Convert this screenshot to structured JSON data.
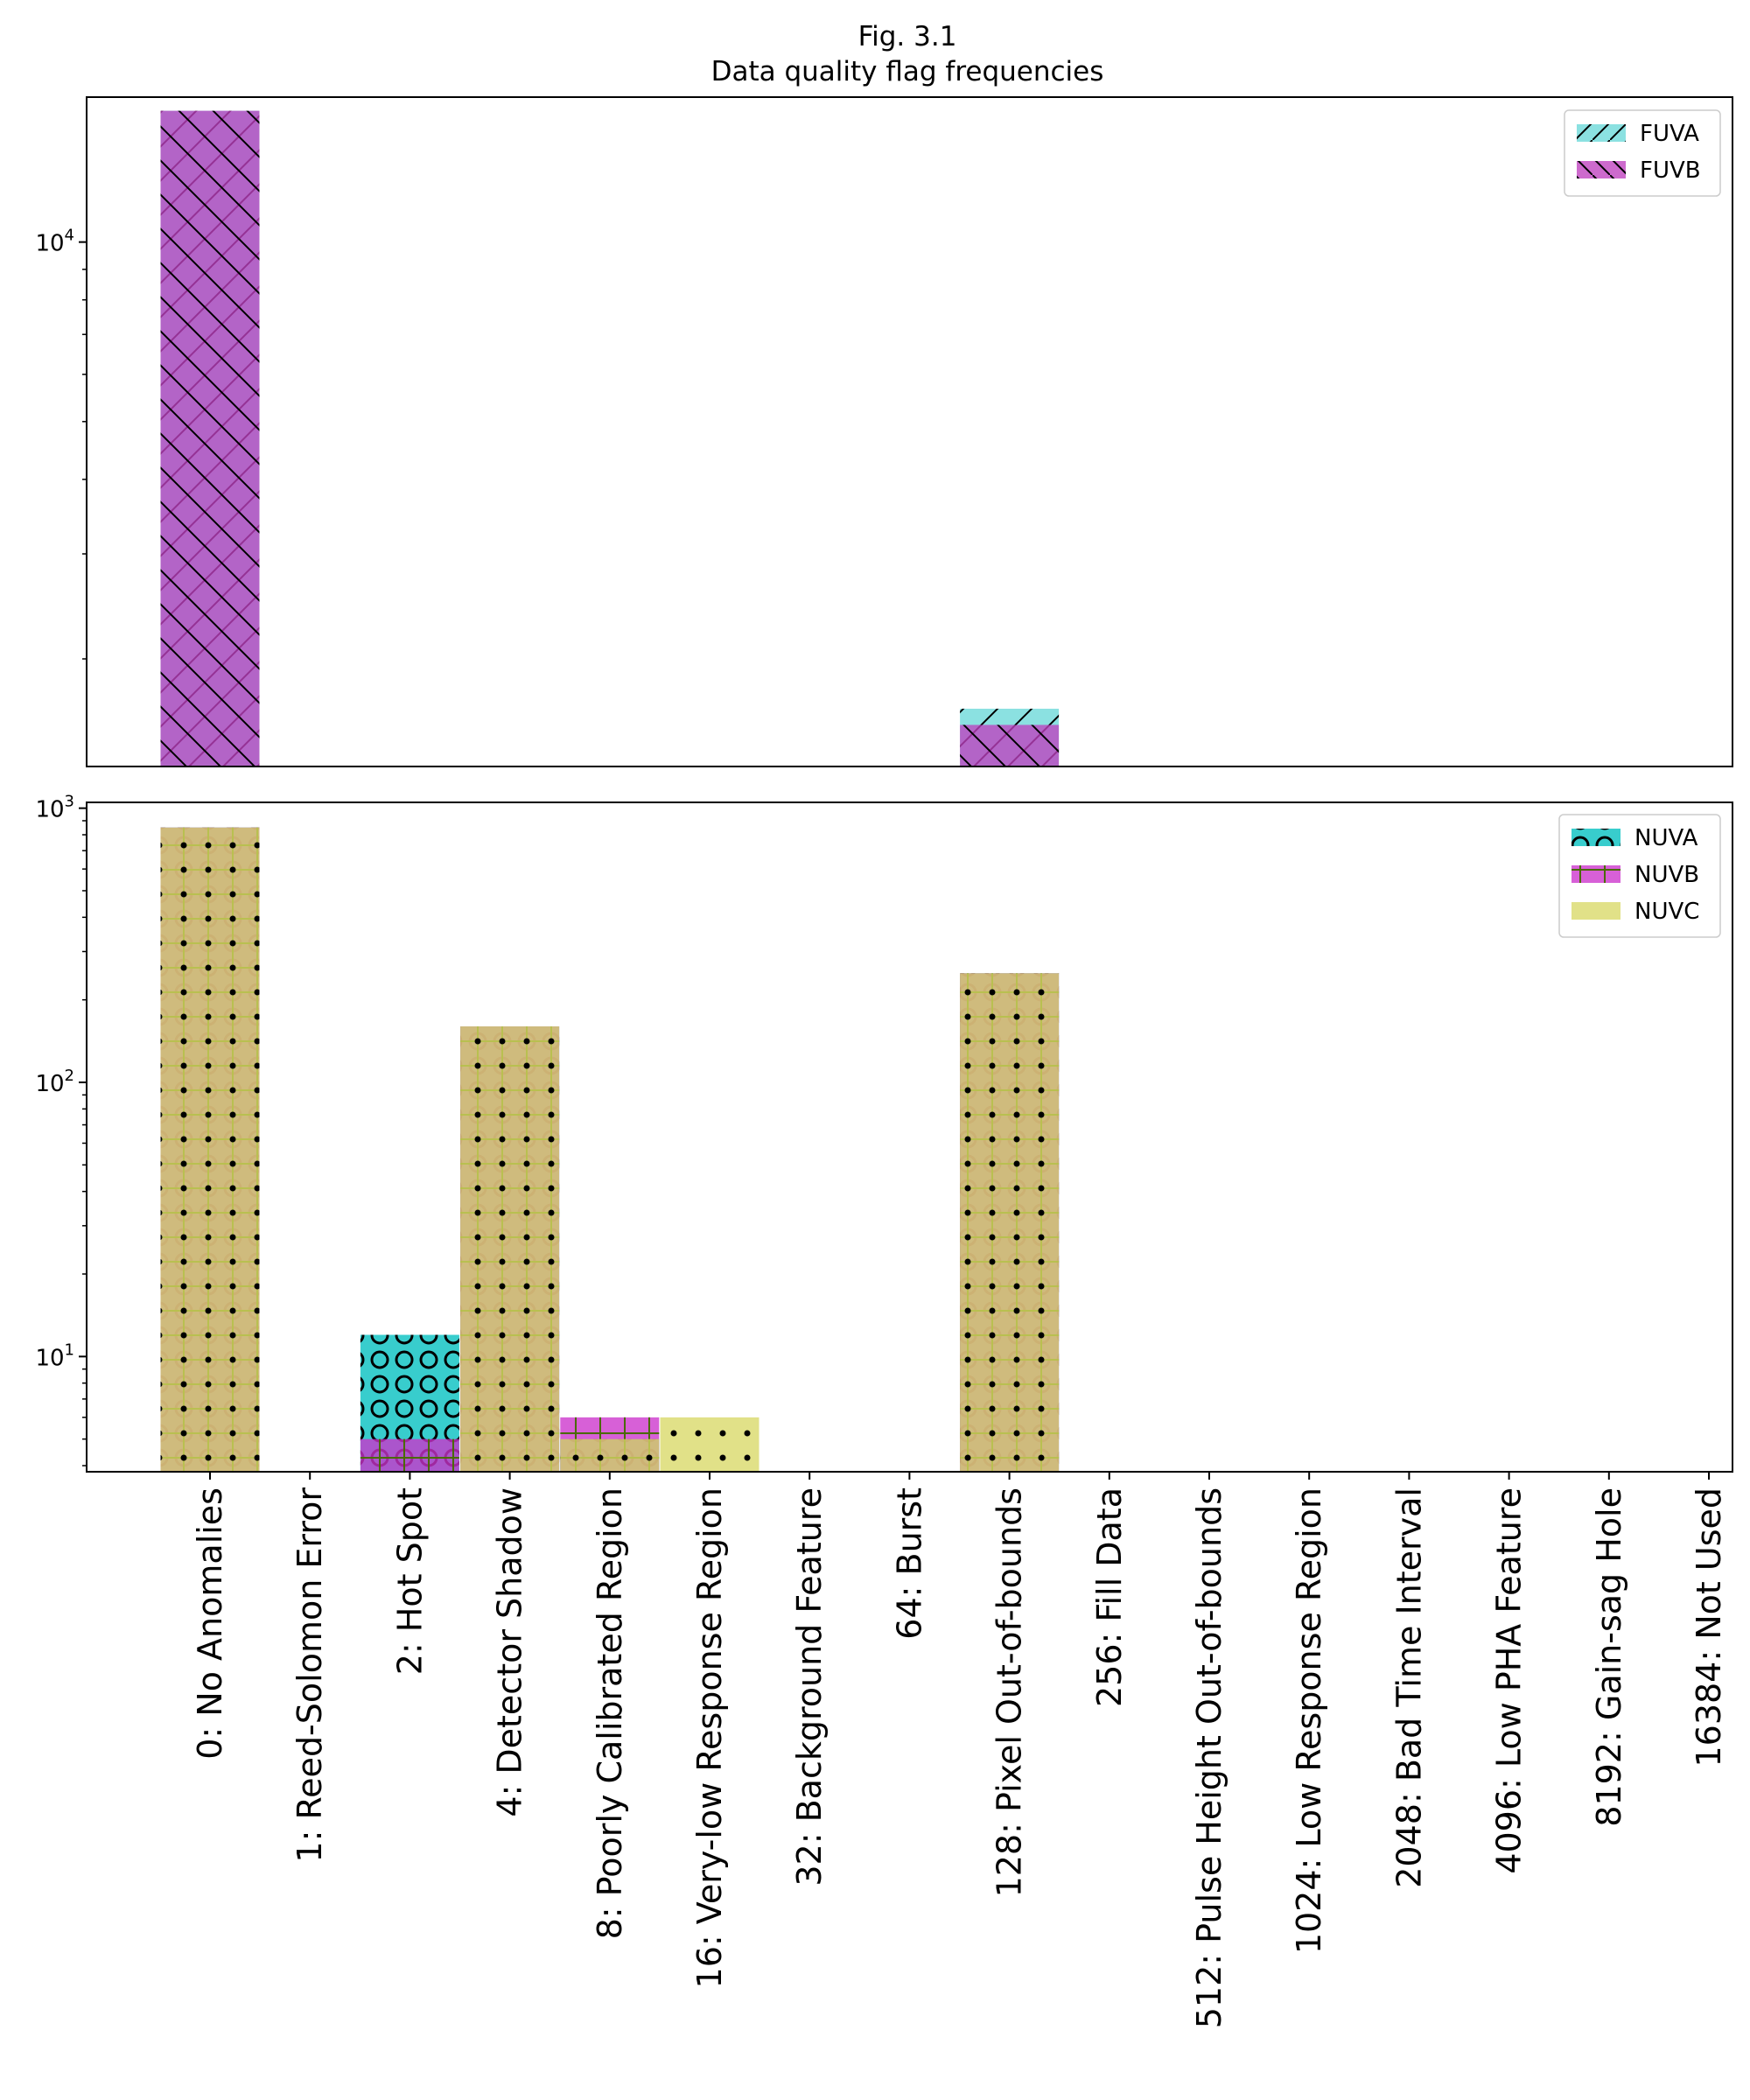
{
  "figure": {
    "title_line1": "Fig. 3.1",
    "title_line2": "Data quality flag frequencies"
  },
  "chart_data": [
    {
      "type": "bar",
      "panel": "top",
      "scale": "log",
      "ylim": [
        1320,
        17500
      ],
      "yticks": [
        {
          "value": 10000,
          "base": "10",
          "exp": "4"
        }
      ],
      "categories": [
        "0: No Anomalies",
        "1: Reed-Solomon Error",
        "2: Hot Spot",
        "4: Detector Shadow",
        "8: Poorly Calibrated Region",
        "16: Very-low Response Region",
        "32: Background Feature",
        "64: Burst",
        "128: Pixel Out-of-bounds",
        "256: Fill Data",
        "512: Pulse Height Out-of-bounds",
        "1024: Low Response Region",
        "2048: Bad Time Interval",
        "4096: Low PHA Feature",
        "8192: Gain-sag Hole",
        "16384: Not Used"
      ],
      "series": [
        {
          "name": "FUVA",
          "color": "#6ad9d9",
          "hatch": "/",
          "values": [
            16600,
            0,
            0,
            0,
            0,
            0,
            0,
            0,
            1650,
            0,
            0,
            0,
            0,
            0,
            0,
            0
          ]
        },
        {
          "name": "FUVB",
          "color": "#bf40bf",
          "hatch": "\\",
          "values": [
            16600,
            0,
            0,
            0,
            0,
            0,
            0,
            0,
            1550,
            0,
            0,
            0,
            0,
            0,
            0,
            0
          ]
        }
      ],
      "legend": "top-right"
    },
    {
      "type": "bar",
      "panel": "bottom",
      "scale": "log",
      "ylim": [
        3.8,
        1050
      ],
      "yticks": [
        {
          "value": 10,
          "base": "10",
          "exp": "1"
        },
        {
          "value": 100,
          "base": "10",
          "exp": "2"
        },
        {
          "value": 1000,
          "base": "10",
          "exp": "3"
        }
      ],
      "categories": [
        "0: No Anomalies",
        "1: Reed-Solomon Error",
        "2: Hot Spot",
        "4: Detector Shadow",
        "8: Poorly Calibrated Region",
        "16: Very-low Response Region",
        "32: Background Feature",
        "64: Burst",
        "128: Pixel Out-of-bounds",
        "256: Fill Data",
        "512: Pulse Height Out-of-bounds",
        "1024: Low Response Region",
        "2048: Bad Time Interval",
        "4096: Low PHA Feature",
        "8192: Gain-sag Hole",
        "16384: Not Used"
      ],
      "series": [
        {
          "name": "NUVA",
          "color": "#00bfbf",
          "hatch": "o",
          "values": [
            850,
            0,
            12,
            160,
            5,
            0,
            0,
            0,
            250,
            0,
            0,
            0,
            0,
            0,
            0,
            0
          ]
        },
        {
          "name": "NUVB",
          "color": "#cc33cc",
          "hatch": "+",
          "values": [
            850,
            0,
            5,
            160,
            6,
            0,
            0,
            0,
            250,
            0,
            0,
            0,
            0,
            0,
            0,
            0
          ]
        },
        {
          "name": "NUVC",
          "color": "#d9d966",
          "hatch": ".",
          "values": [
            850,
            0,
            0,
            160,
            5,
            6,
            0,
            0,
            250,
            0,
            0,
            0,
            0,
            0,
            0,
            0
          ]
        }
      ],
      "legend": "top-right"
    }
  ]
}
